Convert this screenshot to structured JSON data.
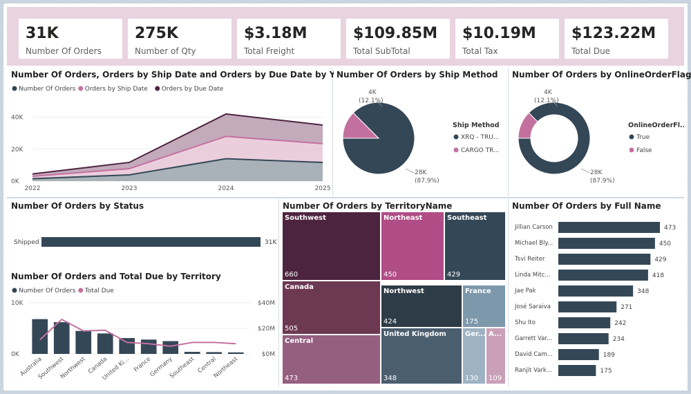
{
  "kpis": [
    {
      "value": "31K",
      "label": "Number Of Orders"
    },
    {
      "value": "275K",
      "label": "Number of Qty"
    },
    {
      "value": "$3.18M",
      "label": "Total Freight"
    },
    {
      "value": "$109.85M",
      "label": "Total SubTotal"
    },
    {
      "value": "$10.19M",
      "label": "Total Tax"
    },
    {
      "value": "$123.22M",
      "label": "Total Due"
    }
  ],
  "colors": {
    "dark_slate": "#344757",
    "pink": "#c4709f",
    "plum": "#4d2440",
    "kpi_strip": "#e8d3df"
  },
  "chart_data": [
    {
      "id": "orders_by_year",
      "type": "area",
      "title": "Number Of Orders, Orders by Ship Date and Orders by Due Date by Year",
      "categories": [
        "2022",
        "2023",
        "2024",
        "2025"
      ],
      "y_ticks": [
        "40K",
        "20K",
        "0K"
      ],
      "ylim": [
        0,
        45000
      ],
      "series": [
        {
          "name": "Number Of Orders",
          "values": [
            1500,
            3900,
            14000,
            11700
          ],
          "color": "#344757"
        },
        {
          "name": "Orders by Ship Date",
          "values": [
            1500,
            3900,
            14000,
            11700
          ],
          "color": "#c4709f"
        },
        {
          "name": "Orders by Due Date",
          "values": [
            1500,
            3900,
            14000,
            11700
          ],
          "color": "#4d2440"
        }
      ]
    },
    {
      "id": "ship_method",
      "type": "pie",
      "title": "Number Of Orders by Ship Method",
      "legend_title": "Ship Method",
      "slices": [
        {
          "label": "XRQ - TRU...",
          "value": 28000,
          "display": "28K",
          "pct": "(87.9%)",
          "color": "#344757"
        },
        {
          "label": "CARGO TR...",
          "value": 4000,
          "display": "4K",
          "pct": "(12.1%)",
          "color": "#c4709f"
        }
      ]
    },
    {
      "id": "online_flag",
      "type": "pie",
      "title": "Number Of Orders by OnlineOrderFlag",
      "legend_title": "OnlineOrderFl...",
      "slices": [
        {
          "label": "True",
          "value": 28000,
          "display": "28K",
          "pct": "(87.9%)",
          "color": "#344757"
        },
        {
          "label": "False",
          "value": 4000,
          "display": "4K",
          "pct": "(12.1%)",
          "color": "#c4709f"
        }
      ]
    },
    {
      "id": "status",
      "type": "bar",
      "title": "Number Of Orders by Status",
      "categories": [
        "Shipped"
      ],
      "values": [
        31000
      ],
      "labels": [
        "31K"
      ]
    },
    {
      "id": "territory_combo",
      "type": "bar",
      "title": "Number Of Orders and Total Due by Territory",
      "categories": [
        "Australia",
        "Southwest",
        "Northwest",
        "Canada",
        "United Ki...",
        "France",
        "Germany",
        "Southeast",
        "Central",
        "Northeast"
      ],
      "series": [
        {
          "name": "Number Of Orders",
          "values": [
            6800,
            6200,
            4500,
            4000,
            3100,
            2800,
            2500,
            400,
            350,
            300
          ],
          "color": "#344757"
        },
        {
          "name": "Total Due",
          "values": [
            11000000,
            27000000,
            18000000,
            18500000,
            9000000,
            8000000,
            6000000,
            9000000,
            9000000,
            8000000
          ],
          "color": "#c4709f"
        }
      ],
      "y_ticks_left": [
        "10K",
        "0K"
      ],
      "y_ticks_right": [
        "$40M",
        "$20M",
        "$0M"
      ],
      "ylim_left": [
        0,
        10000
      ],
      "ylim_right": [
        0,
        40000000
      ]
    },
    {
      "id": "treemap",
      "type": "heatmap",
      "title": "Number Of Orders by TerritoryName",
      "items": [
        {
          "name": "Southwest",
          "value": 660,
          "color": "#4d2440"
        },
        {
          "name": "Northeast",
          "value": 450,
          "color": "#b04c86"
        },
        {
          "name": "Southeast",
          "value": 429,
          "color": "#344757"
        },
        {
          "name": "Canada",
          "value": 505,
          "color": "#6d3852"
        },
        {
          "name": "Northwest",
          "value": 424,
          "color": "#2e3c47"
        },
        {
          "name": "France",
          "value": 175,
          "color": "#7d98ab"
        },
        {
          "name": "Central",
          "value": 473,
          "color": "#955f80"
        },
        {
          "name": "United Kingdom",
          "value": 348,
          "color": "#4b5e6f"
        },
        {
          "name": "Ger...",
          "value": 130,
          "color": "#9db3c4"
        },
        {
          "name": "A...",
          "value": 109,
          "color": "#c9a0b8"
        }
      ]
    },
    {
      "id": "full_name",
      "type": "bar",
      "title": "Number Of Orders by Full Name",
      "categories": [
        "Jillian Carson",
        "Michael Bly...",
        "Tsvi Reiter",
        "Linda Mitc...",
        "Jae Pak",
        "José Saraiva",
        "Shu Ito",
        "Garrett Var...",
        "David Cam...",
        "Ranjit Vark..."
      ],
      "values": [
        473,
        450,
        429,
        418,
        348,
        271,
        242,
        234,
        189,
        175
      ]
    }
  ]
}
